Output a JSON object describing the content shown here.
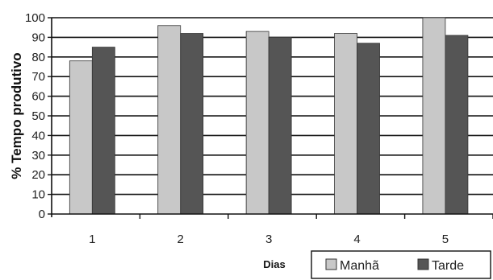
{
  "chart_data": {
    "type": "bar",
    "title": "",
    "xlabel": "Dias",
    "ylabel": "% Tempo produtivo",
    "categories": [
      "1",
      "2",
      "3",
      "4",
      "5"
    ],
    "series": [
      {
        "name": "Manhã",
        "values": [
          78,
          96,
          93,
          92,
          100
        ],
        "color": "#c8c8c8"
      },
      {
        "name": "Tarde",
        "values": [
          85,
          92,
          90,
          87,
          91
        ],
        "color": "#555555"
      }
    ],
    "ylim": [
      0,
      100
    ],
    "yticks": [
      "0",
      "10",
      "20",
      "30",
      "40",
      "50",
      "60",
      "70",
      "80",
      "90",
      "100"
    ],
    "grid": true,
    "legend_position": "bottom-right"
  }
}
